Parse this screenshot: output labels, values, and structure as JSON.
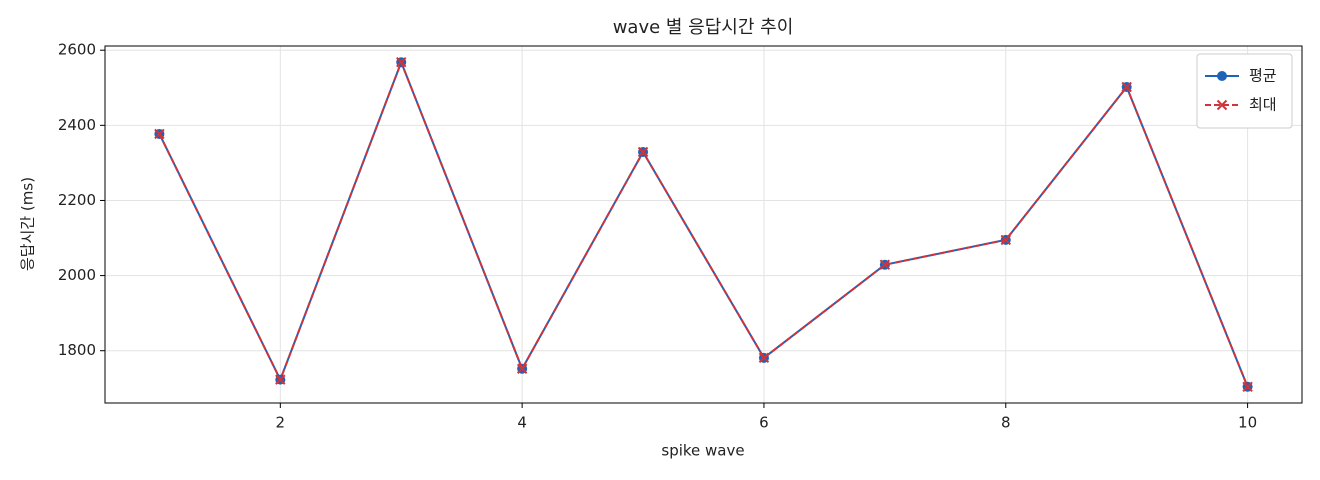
{
  "chart_data": {
    "type": "line",
    "title": "wave 별 응답시간 추이",
    "x_label": "spike wave",
    "y_label": "응답시간 (ms)",
    "x": [
      1,
      2,
      3,
      4,
      5,
      6,
      7,
      8,
      9,
      10
    ],
    "series": [
      {
        "name": "평균",
        "color": "#1f63b8",
        "dash": false,
        "marker": "circle",
        "values": [
          2377,
          1723,
          2568,
          1752,
          2329,
          1781,
          2029,
          2095,
          2502,
          1704
        ]
      },
      {
        "name": "최대",
        "color": "#d0343a",
        "dash": true,
        "marker": "x",
        "values": [
          2377,
          1723,
          2568,
          1752,
          2329,
          1781,
          2029,
          2095,
          2502,
          1704
        ]
      }
    ],
    "xlim": [
      0.55,
      10.45
    ],
    "ylim": [
      1660.8,
      2611.2
    ],
    "xticks": [
      2,
      4,
      6,
      8,
      10
    ],
    "yticks": [
      1800,
      2000,
      2200,
      2400,
      2600
    ],
    "grid": true,
    "legend": "upper right"
  }
}
